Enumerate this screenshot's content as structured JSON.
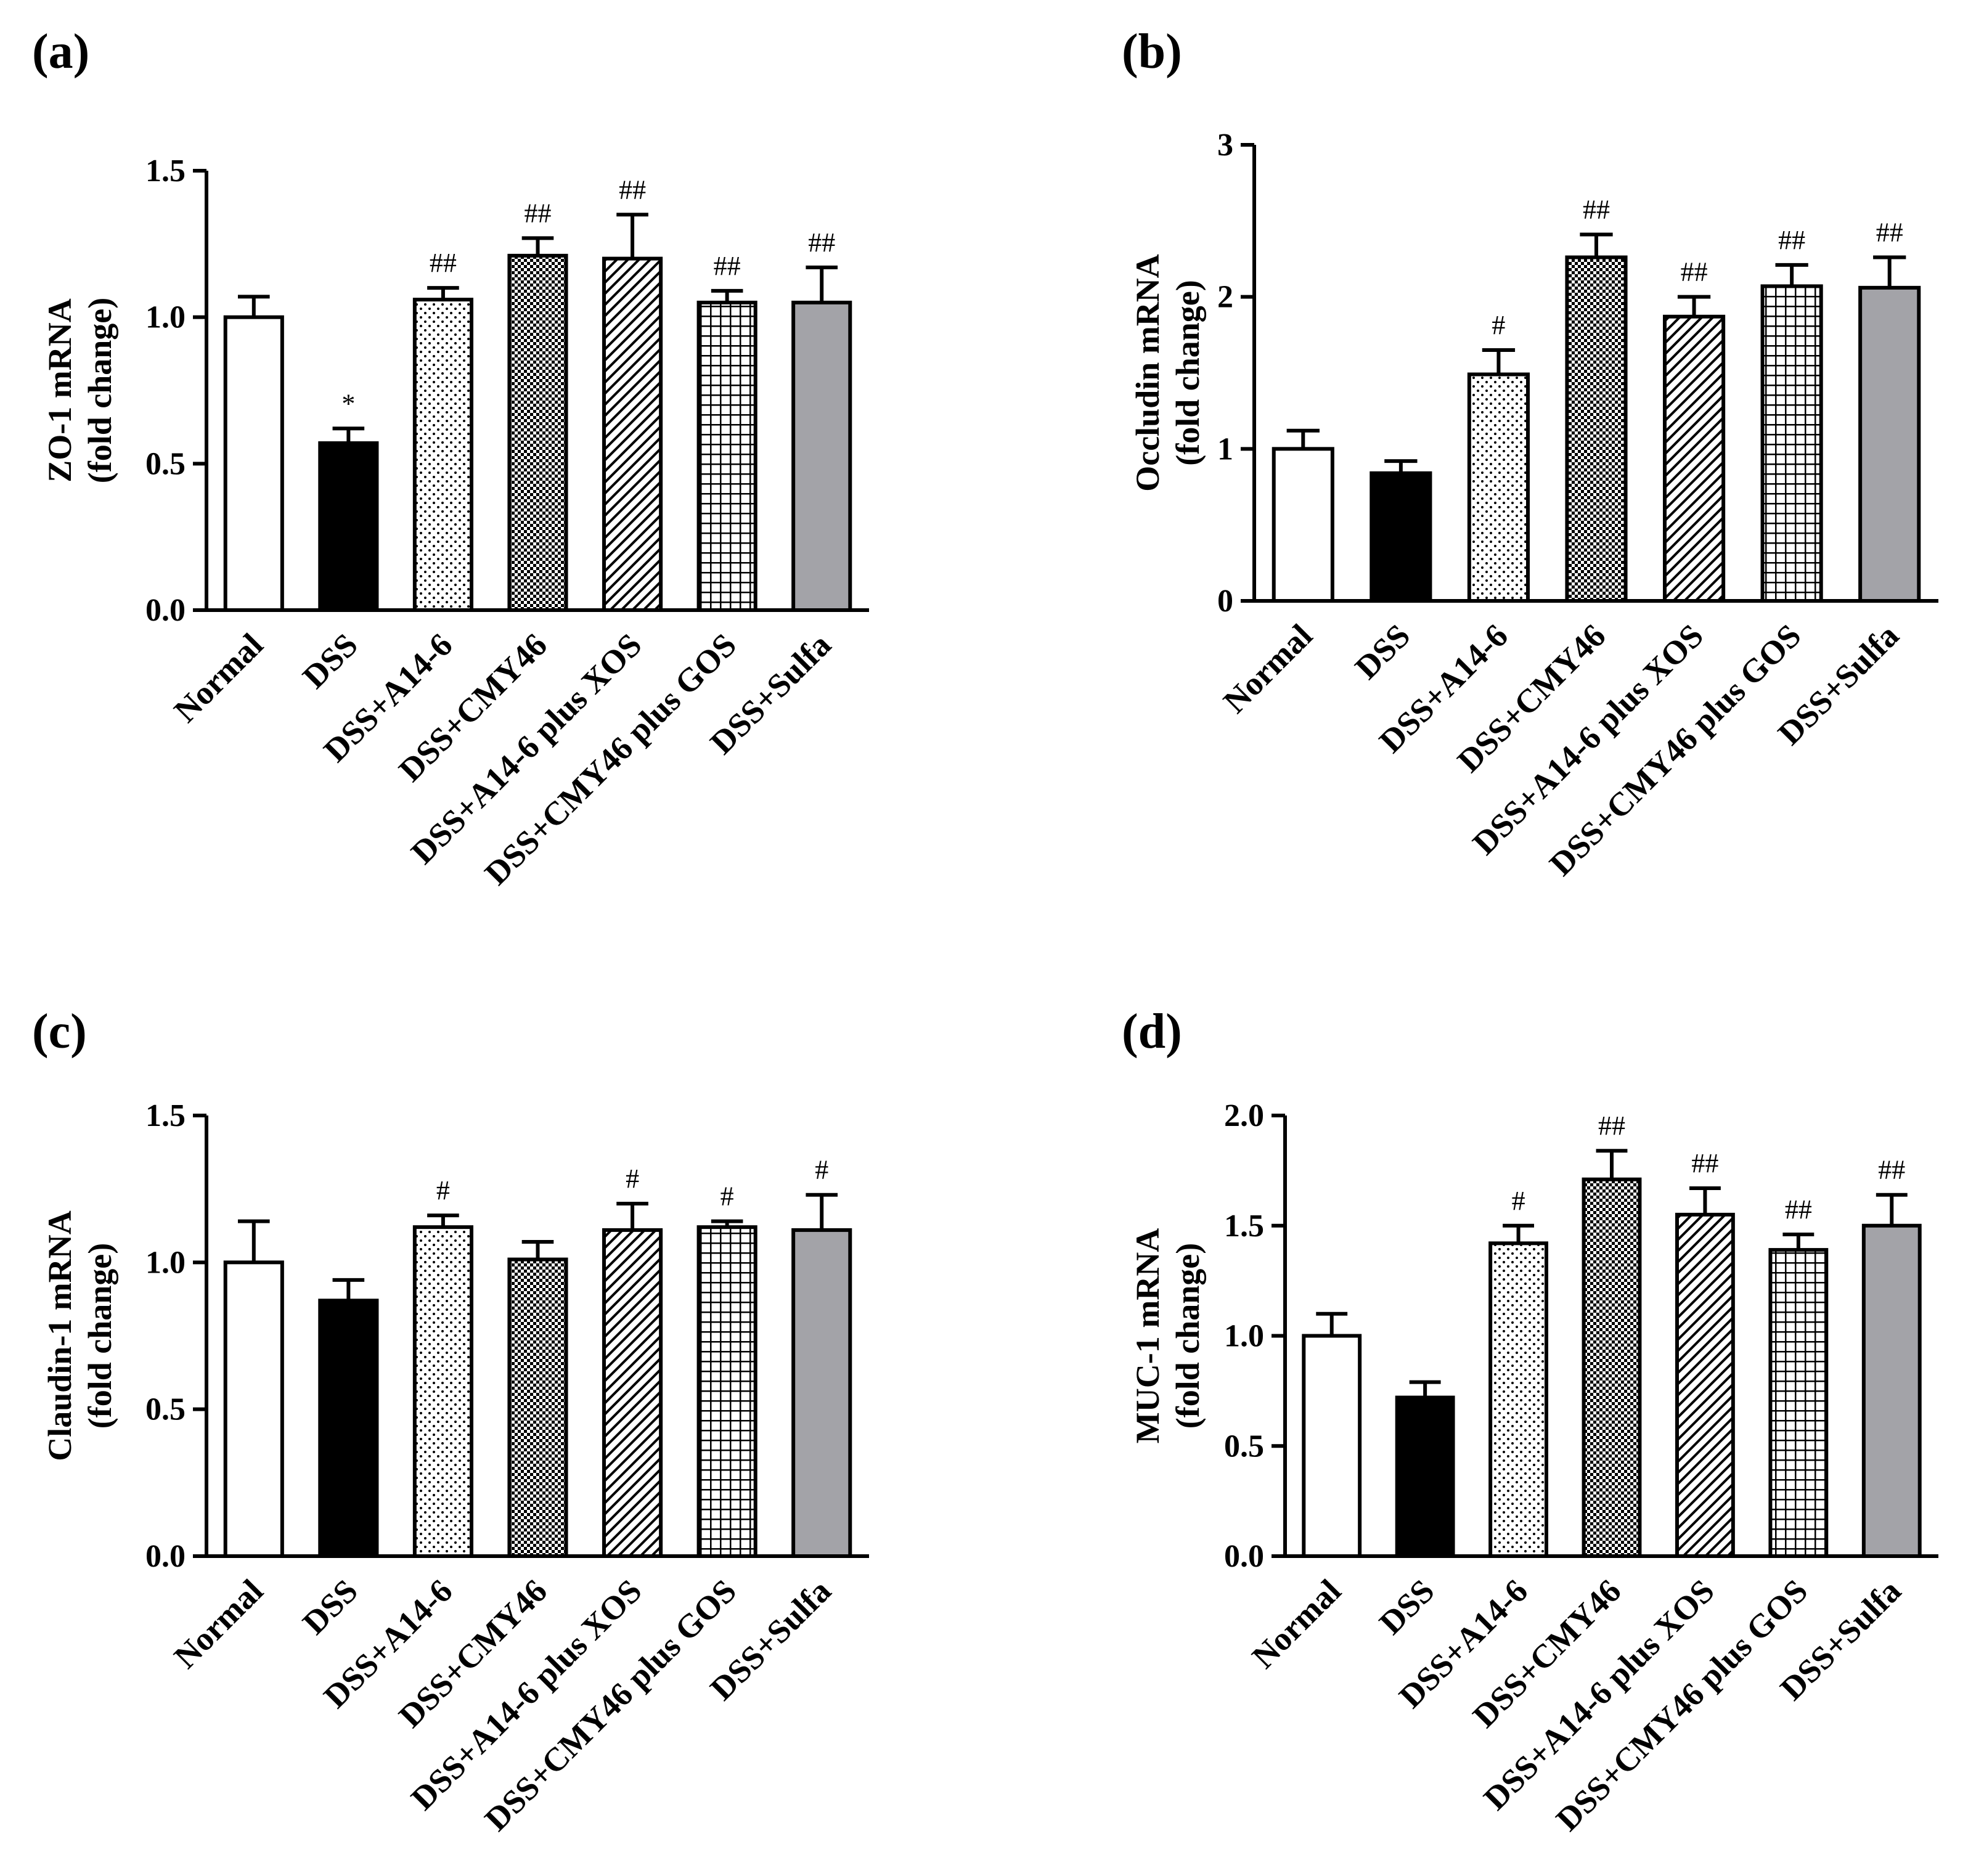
{
  "chart_data": [
    {
      "panel": "(a)",
      "type": "bar",
      "ylabel": [
        "ZO-1 mRNA",
        "(fold change)"
      ],
      "ylim": [
        0,
        1.5
      ],
      "yticks": [
        "0.0",
        "0.5",
        "1.0",
        "1.5"
      ],
      "ytick_values": [
        0,
        0.5,
        1.0,
        1.5
      ],
      "categories": [
        "Normal",
        "DSS",
        "DSS+A14-6",
        "DSS+CMY46",
        "DSS+A14-6 plus XOS",
        "DSS+CMY46 plus GOS",
        "DSS+Sulfa"
      ],
      "values": [
        1.0,
        0.57,
        1.06,
        1.21,
        1.2,
        1.05,
        1.05
      ],
      "errors": [
        0.07,
        0.05,
        0.04,
        0.06,
        0.15,
        0.04,
        0.12
      ],
      "annotations": [
        "",
        "*",
        "##",
        "##",
        "##",
        "##",
        "##"
      ]
    },
    {
      "panel": "(b)",
      "type": "bar",
      "ylabel": [
        "Occludin mRNA",
        "(fold change)"
      ],
      "ylim": [
        0,
        3
      ],
      "yticks": [
        "0",
        "1",
        "2",
        "3"
      ],
      "ytick_values": [
        0,
        1,
        2,
        3
      ],
      "categories": [
        "Normal",
        "DSS",
        "DSS+A14-6",
        "DSS+CMY46",
        "DSS+A14-6 plus XOS",
        "DSS+CMY46 plus GOS",
        "DSS+Sulfa"
      ],
      "values": [
        1.0,
        0.84,
        1.49,
        2.26,
        1.87,
        2.07,
        2.06
      ],
      "errors": [
        0.12,
        0.08,
        0.16,
        0.15,
        0.13,
        0.14,
        0.2
      ],
      "annotations": [
        "",
        "",
        "#",
        "##",
        "##",
        "##",
        "##"
      ]
    },
    {
      "panel": "(c)",
      "type": "bar",
      "ylabel": [
        "Claudin-1 mRNA",
        "(fold change)"
      ],
      "ylim": [
        0,
        1.5
      ],
      "yticks": [
        "0.0",
        "0.5",
        "1.0",
        "1.5"
      ],
      "ytick_values": [
        0,
        0.5,
        1.0,
        1.5
      ],
      "categories": [
        "Normal",
        "DSS",
        "DSS+A14-6",
        "DSS+CMY46",
        "DSS+A14-6 plus XOS",
        "DSS+CMY46 plus GOS",
        "DSS+Sulfa"
      ],
      "values": [
        1.0,
        0.87,
        1.12,
        1.01,
        1.11,
        1.12,
        1.11
      ],
      "errors": [
        0.14,
        0.07,
        0.04,
        0.06,
        0.09,
        0.02,
        0.12
      ],
      "annotations": [
        "",
        "",
        "#",
        "",
        "#",
        "#",
        "#"
      ]
    },
    {
      "panel": "(d)",
      "type": "bar",
      "ylabel": [
        "MUC-1 mRNA",
        "(fold change)"
      ],
      "ylim": [
        0,
        2.0
      ],
      "yticks": [
        "0.0",
        "0.5",
        "1.0",
        "1.5",
        "2.0"
      ],
      "ytick_values": [
        0,
        0.5,
        1.0,
        1.5,
        2.0
      ],
      "categories": [
        "Normal",
        "DSS",
        "DSS+A14-6",
        "DSS+CMY46",
        "DSS+A14-6 plus XOS",
        "DSS+CMY46 plus GOS",
        "DSS+Sulfa"
      ],
      "values": [
        1.0,
        0.72,
        1.42,
        1.71,
        1.55,
        1.39,
        1.5
      ],
      "errors": [
        0.1,
        0.07,
        0.08,
        0.13,
        0.12,
        0.07,
        0.14
      ],
      "annotations": [
        "",
        "",
        "#",
        "##",
        "##",
        "##",
        "##"
      ]
    }
  ],
  "series_styles": [
    {
      "name": "Normal",
      "fill": "white"
    },
    {
      "name": "DSS",
      "fill": "solid-black"
    },
    {
      "name": "DSS+A14-6",
      "fill": "dots"
    },
    {
      "name": "DSS+CMY46",
      "fill": "dense-checker"
    },
    {
      "name": "DSS+A14-6 plus XOS",
      "fill": "diagonal-hatch"
    },
    {
      "name": "DSS+CMY46 plus GOS",
      "fill": "grid"
    },
    {
      "name": "DSS+Sulfa",
      "fill": "solid-gray"
    }
  ],
  "colors": {
    "black": "#000000",
    "gray": "#a3a3a8",
    "white": "#ffffff"
  }
}
